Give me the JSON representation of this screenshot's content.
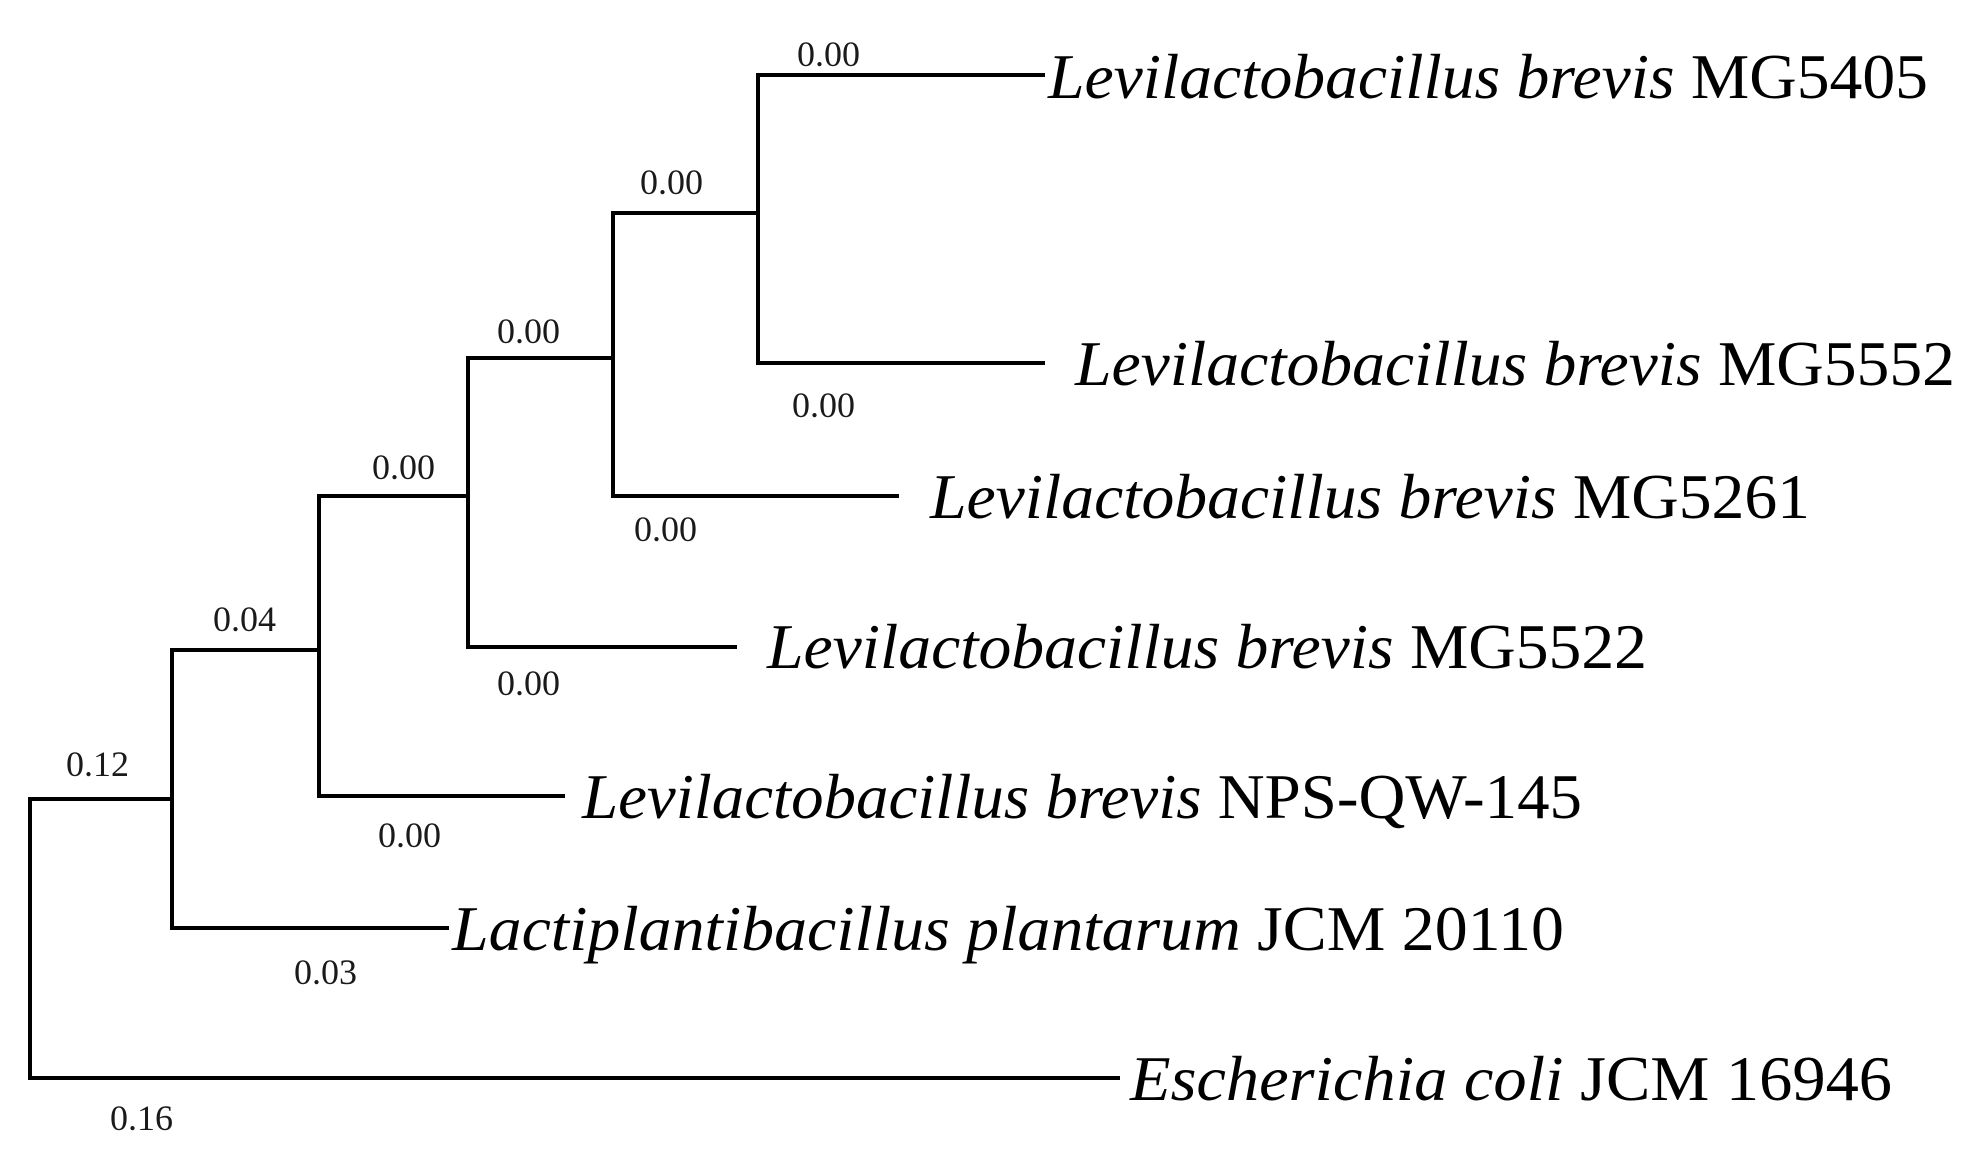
{
  "tree": {
    "taxa": [
      {
        "id": "mg5405",
        "genus_species": "Levilactobacillus brevis",
        "strain": "MG5405"
      },
      {
        "id": "mg5552",
        "genus_species": "Levilactobacillus brevis",
        "strain": "MG5552"
      },
      {
        "id": "mg5261",
        "genus_species": "Levilactobacillus brevis",
        "strain": "MG5261"
      },
      {
        "id": "mg5522",
        "genus_species": "Levilactobacillus brevis",
        "strain": "MG5522"
      },
      {
        "id": "npsqw145",
        "genus_species": "Levilactobacillus brevis",
        "strain": "NPS-QW-145"
      },
      {
        "id": "jcm20110",
        "genus_species": "Lactiplantibacillus plantarum",
        "strain": "JCM 20110"
      },
      {
        "id": "jcm16946",
        "genus_species": "Escherichia coli",
        "strain": "JCM 16946"
      }
    ],
    "branch_lengths": {
      "mg5405": "0.00",
      "mg5552": "0.00",
      "clade_5405_5552": "0.00",
      "mg5261": "0.00",
      "clade_4": "0.00",
      "mg5522": "0.00",
      "clade_5": "0.04",
      "npsqw145": "0.00",
      "clade_6": "0.12",
      "jcm20110": "0.03",
      "jcm16946": "0.16"
    }
  },
  "colors": {
    "branch": "#000000",
    "text": "#000000"
  }
}
